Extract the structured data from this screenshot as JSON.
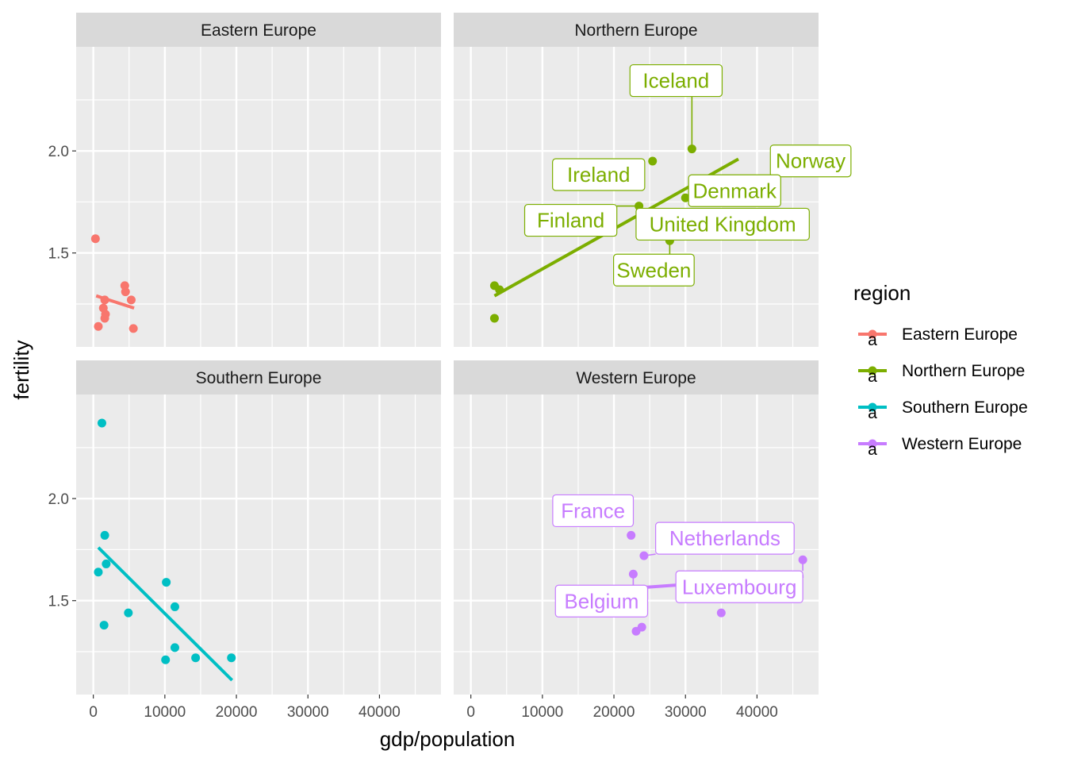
{
  "chart_data": {
    "type": "scatter",
    "xlabel": "gdp/population",
    "ylabel": "fertility",
    "xlim": [
      -2400,
      48600
    ],
    "ylim": [
      1.04,
      2.51
    ],
    "x_ticks": [
      0,
      10000,
      20000,
      30000,
      40000
    ],
    "x_tick_labels": [
      "0",
      "10000",
      "20000",
      "30000",
      "40000"
    ],
    "y_ticks": [
      1.5,
      2.0
    ],
    "y_tick_labels": [
      "1.5",
      "2.0"
    ],
    "grid": true,
    "legend": {
      "title": "region",
      "position": "right",
      "key_glyph_letter": "a",
      "entries": [
        "Eastern Europe",
        "Northern Europe",
        "Southern Europe",
        "Western Europe"
      ]
    },
    "panels": [
      {
        "name": "Eastern Europe",
        "color": "#F8766D",
        "points": [
          {
            "x": 300,
            "y": 1.57
          },
          {
            "x": 4400,
            "y": 1.34
          },
          {
            "x": 4500,
            "y": 1.31
          },
          {
            "x": 1600,
            "y": 1.27
          },
          {
            "x": 5300,
            "y": 1.27
          },
          {
            "x": 1400,
            "y": 1.23
          },
          {
            "x": 1700,
            "y": 1.2
          },
          {
            "x": 1600,
            "y": 1.18
          },
          {
            "x": 700,
            "y": 1.14
          },
          {
            "x": 5600,
            "y": 1.13
          }
        ],
        "fit": {
          "x": [
            400,
            5700
          ],
          "y": [
            1.29,
            1.23
          ]
        },
        "labels": []
      },
      {
        "name": "Northern Europe",
        "color": "#7CAE00",
        "points": [
          {
            "x": 30900,
            "y": 2.01
          },
          {
            "x": 25400,
            "y": 1.95
          },
          {
            "x": 37300,
            "y": 1.85
          },
          {
            "x": 30000,
            "y": 1.77
          },
          {
            "x": 23500,
            "y": 1.73
          },
          {
            "x": 25000,
            "y": 1.68
          },
          {
            "x": 27800,
            "y": 1.56
          },
          {
            "x": 3300,
            "y": 1.34
          },
          {
            "x": 4000,
            "y": 1.32
          },
          {
            "x": 3300,
            "y": 1.18
          }
        ],
        "fit": {
          "x": [
            3300,
            37400
          ],
          "y": [
            1.29,
            1.96
          ]
        },
        "labels": [
          {
            "text": "Iceland",
            "x": 30900,
            "y": 2.01
          },
          {
            "text": "Norway",
            "x": 37300,
            "y": 1.85
          },
          {
            "text": "Ireland",
            "x": 25400,
            "y": 1.95
          },
          {
            "text": "Denmark",
            "x": 30000,
            "y": 1.77
          },
          {
            "text": "Finland",
            "x": 23500,
            "y": 1.73
          },
          {
            "text": "United Kingdom",
            "x": 25000,
            "y": 1.68
          },
          {
            "text": "Sweden",
            "x": 27800,
            "y": 1.56
          }
        ]
      },
      {
        "name": "Southern Europe",
        "color": "#00BFC4",
        "points": [
          {
            "x": 1200,
            "y": 2.37
          },
          {
            "x": 1600,
            "y": 1.82
          },
          {
            "x": 1800,
            "y": 1.68
          },
          {
            "x": 700,
            "y": 1.64
          },
          {
            "x": 10200,
            "y": 1.59
          },
          {
            "x": 11400,
            "y": 1.47
          },
          {
            "x": 4900,
            "y": 1.44
          },
          {
            "x": 1500,
            "y": 1.38
          },
          {
            "x": 11400,
            "y": 1.27
          },
          {
            "x": 14300,
            "y": 1.22
          },
          {
            "x": 19300,
            "y": 1.22
          },
          {
            "x": 10100,
            "y": 1.21
          }
        ],
        "fit": {
          "x": [
            700,
            19400
          ],
          "y": [
            1.76,
            1.11
          ]
        },
        "labels": []
      },
      {
        "name": "Western Europe",
        "color": "#C77CFF",
        "points": [
          {
            "x": 22400,
            "y": 1.82
          },
          {
            "x": 24200,
            "y": 1.72
          },
          {
            "x": 46400,
            "y": 1.7
          },
          {
            "x": 22700,
            "y": 1.63
          },
          {
            "x": 35000,
            "y": 1.44
          },
          {
            "x": 23900,
            "y": 1.37
          },
          {
            "x": 23100,
            "y": 1.35
          }
        ],
        "fit": {
          "x": [
            22300,
            46500
          ],
          "y": [
            1.56,
            1.62
          ]
        },
        "labels": [
          {
            "text": "France",
            "x": 22400,
            "y": 1.82
          },
          {
            "text": "Netherlands",
            "x": 24200,
            "y": 1.72
          },
          {
            "text": "Luxembourg",
            "x": 46400,
            "y": 1.7
          },
          {
            "text": "Belgium",
            "x": 22700,
            "y": 1.63
          }
        ]
      }
    ]
  }
}
